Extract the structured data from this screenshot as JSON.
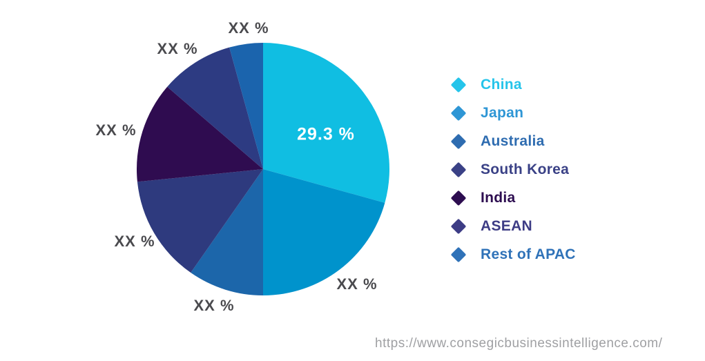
{
  "chart_data": {
    "type": "pie",
    "title": "",
    "unit": "%",
    "start_angle_deg": 0,
    "direction": "clockwise",
    "legend_position": "right",
    "series": [
      {
        "name": "China",
        "value": 29.3,
        "display_label": "29.3 %",
        "color": "#10BEE2"
      },
      {
        "name": "Japan",
        "value": 20.7,
        "display_label": "XX %",
        "color": "#0093CC"
      },
      {
        "name": "Australia",
        "value": 9.7,
        "display_label": "XX %",
        "color": "#1C66AA"
      },
      {
        "name": "South Korea",
        "value": 13.7,
        "display_label": "XX %",
        "color": "#2E3A7E"
      },
      {
        "name": "India",
        "value": 12.9,
        "display_label": "XX %",
        "color": "#2F0C50"
      },
      {
        "name": "ASEAN",
        "value": 9.4,
        "display_label": "XX %",
        "color": "#2D3B82"
      },
      {
        "name": "Rest of APAC",
        "value": 4.3,
        "display_label": "XX %",
        "color": "#1B64AD"
      }
    ]
  },
  "legend": {
    "items": [
      {
        "label": "China",
        "color": "#25C4EA"
      },
      {
        "label": "Japan",
        "color": "#2E96D5"
      },
      {
        "label": "Australia",
        "color": "#2E6CB0"
      },
      {
        "label": "South Korea",
        "color": "#3A4186"
      },
      {
        "label": "India",
        "color": "#2D0D50"
      },
      {
        "label": "ASEAN",
        "color": "#3D3C85"
      },
      {
        "label": "Rest of APAC",
        "color": "#2F72B8"
      }
    ]
  },
  "footer": {
    "url": "https://www.consegicbusinessintelligence.com/"
  }
}
